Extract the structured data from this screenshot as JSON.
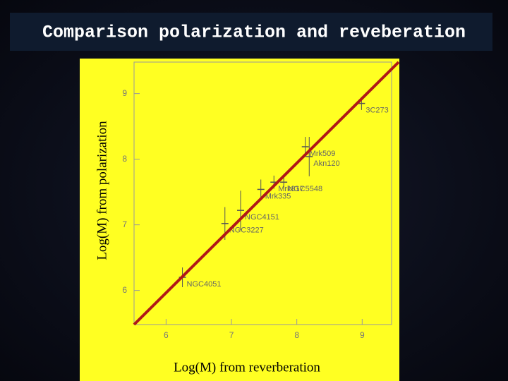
{
  "chart_data": {
    "type": "scatter",
    "title": "Comparison polarization and reveberation",
    "x_label": "Log(M) from reverberation",
    "y_label": "Log(M) from polarization",
    "labels": [
      "3C273",
      "Mrk509",
      "Akn120",
      "Mrk817",
      "Mrk335",
      "NGC5548",
      "NGC4151",
      "NGC3227",
      "NGC4051"
    ],
    "x": [
      8.99,
      8.13,
      8.19,
      7.65,
      7.45,
      7.8,
      7.14,
      6.9,
      6.25
    ],
    "y": [
      8.85,
      8.19,
      8.04,
      7.65,
      7.54,
      7.65,
      7.22,
      7.02,
      6.2
    ],
    "yerr": [
      0.1,
      0.15,
      0.3,
      0.1,
      0.15,
      0.1,
      0.3,
      0.25,
      0.15
    ],
    "color": "#555555",
    "line_color": "#b01818",
    "xlim": [
      5.51,
      9.45
    ],
    "ylim": [
      5.48,
      9.48
    ],
    "xticks": [
      6,
      7,
      8,
      9
    ],
    "yticks": [
      6,
      7,
      8,
      9
    ]
  }
}
